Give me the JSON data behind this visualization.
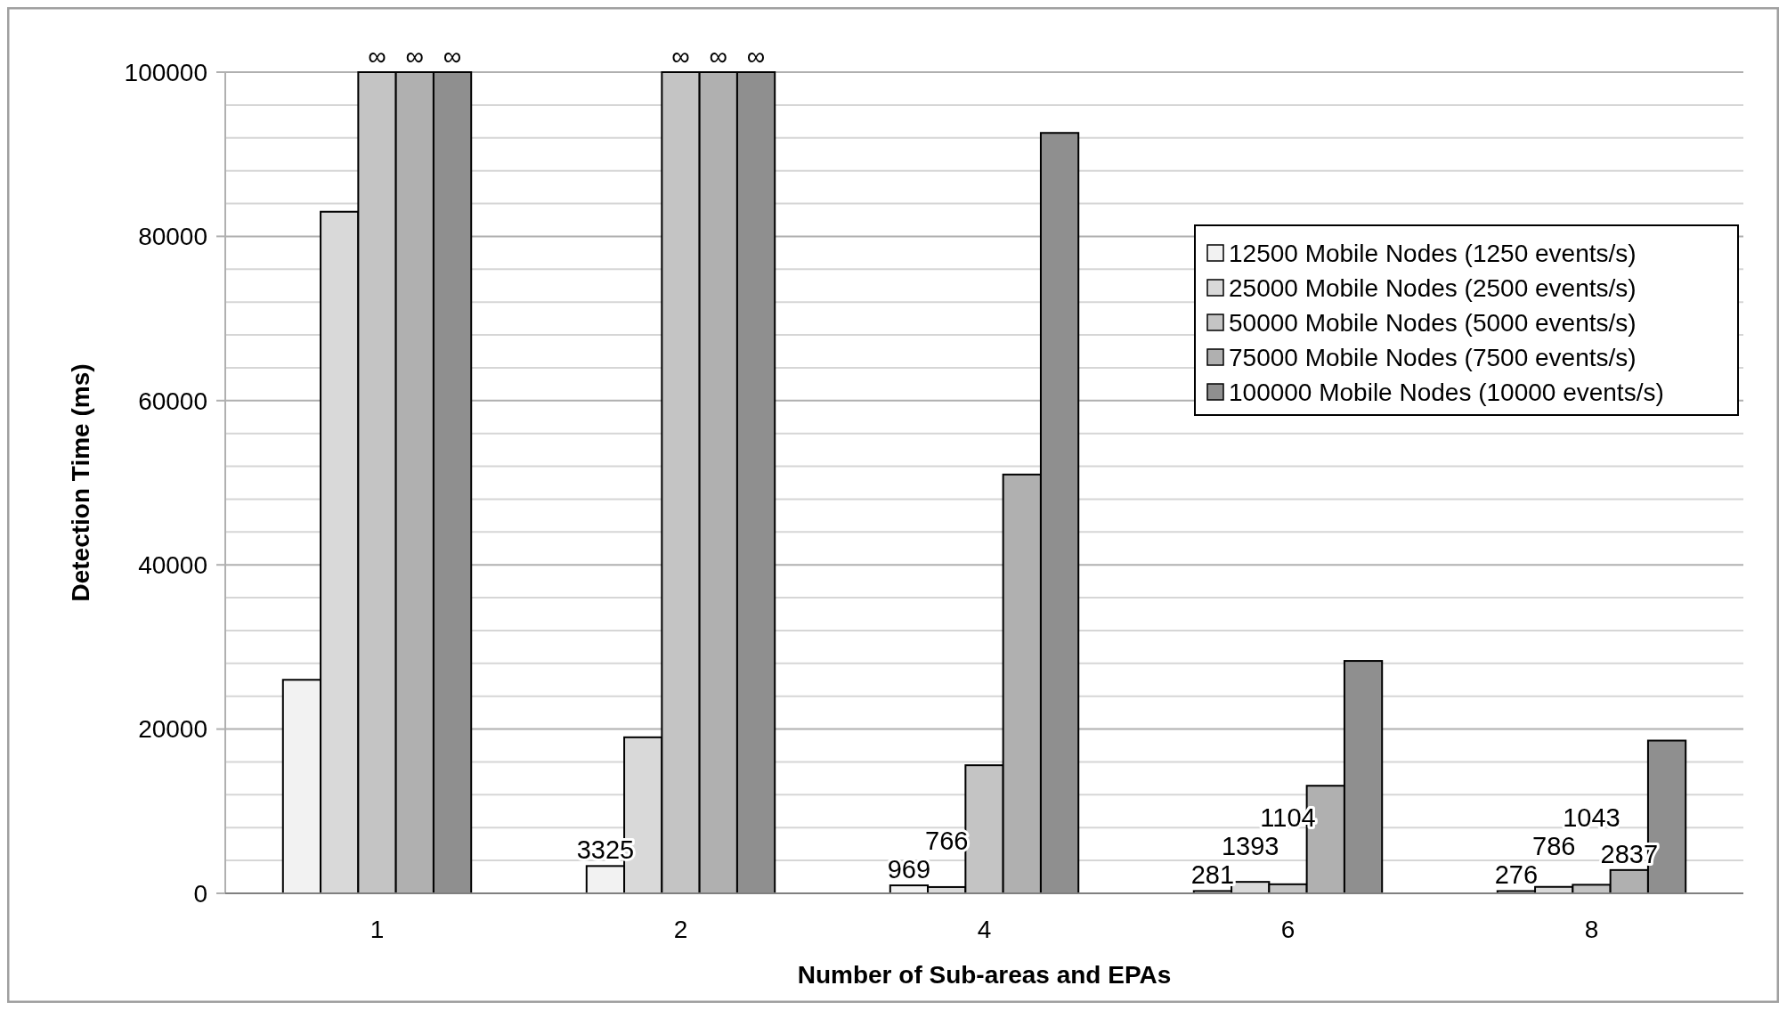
{
  "chart_data": {
    "type": "bar",
    "xlabel": "Number of Sub-areas and EPAs",
    "ylabel": "Detection Time  (ms)",
    "categories": [
      "1",
      "2",
      "4",
      "6",
      "8"
    ],
    "series": [
      {
        "name": "12500 Mobile Nodes (1250 events/s)",
        "color": "#f2f2f2",
        "values": [
          26000,
          3325,
          969,
          281,
          276
        ],
        "value_labels": [
          null,
          "3325",
          "969",
          "281",
          "276"
        ]
      },
      {
        "name": "25000 Mobile Nodes (2500 events/s)",
        "color": "#d9d9d9",
        "values": [
          83000,
          19000,
          766,
          1393,
          786
        ],
        "value_labels": [
          null,
          null,
          "766",
          "1393",
          "786"
        ]
      },
      {
        "name": "50000 Mobile Nodes (5000 events/s)",
        "color": "#c4c4c4",
        "values": [
          100000,
          100000,
          15600,
          1104,
          1043
        ],
        "value_labels": [
          "∞",
          "∞",
          null,
          "1104",
          "1043"
        ]
      },
      {
        "name": "75000 Mobile Nodes (7500 events/s)",
        "color": "#b0b0b0",
        "values": [
          100000,
          100000,
          51000,
          13100,
          2837
        ],
        "value_labels": [
          "∞",
          "∞",
          null,
          null,
          "2837"
        ]
      },
      {
        "name": "100000 Mobile Nodes (10000 events/s)",
        "color": "#8f8f8f",
        "values": [
          100000,
          100000,
          92600,
          28300,
          18600
        ],
        "value_labels": [
          "∞",
          "∞",
          null,
          null,
          null
        ]
      }
    ],
    "ylim": [
      0,
      100000
    ],
    "yticks": [
      0,
      {
        "value": 4000,
        "label": null
      },
      {
        "value": 8000,
        "label": null
      },
      {
        "value": 12000,
        "label": null
      },
      {
        "value": 16000,
        "label": null
      },
      20000,
      {
        "value": 24000,
        "label": null
      },
      {
        "value": 28000,
        "label": null
      },
      {
        "value": 32000,
        "label": null
      },
      {
        "value": 36000,
        "label": null
      },
      40000,
      {
        "value": 44000,
        "label": null
      },
      {
        "value": 48000,
        "label": null
      },
      {
        "value": 52000,
        "label": null
      },
      {
        "value": 56000,
        "label": null
      },
      60000,
      {
        "value": 64000,
        "label": null
      },
      {
        "value": 68000,
        "label": null
      },
      {
        "value": 72000,
        "label": null
      },
      {
        "value": 76000,
        "label": null
      },
      80000,
      {
        "value": 84000,
        "label": null
      },
      {
        "value": 88000,
        "label": null
      },
      {
        "value": 92000,
        "label": null
      },
      {
        "value": 96000,
        "label": null
      },
      100000
    ],
    "grid": "y",
    "legend": "right"
  }
}
